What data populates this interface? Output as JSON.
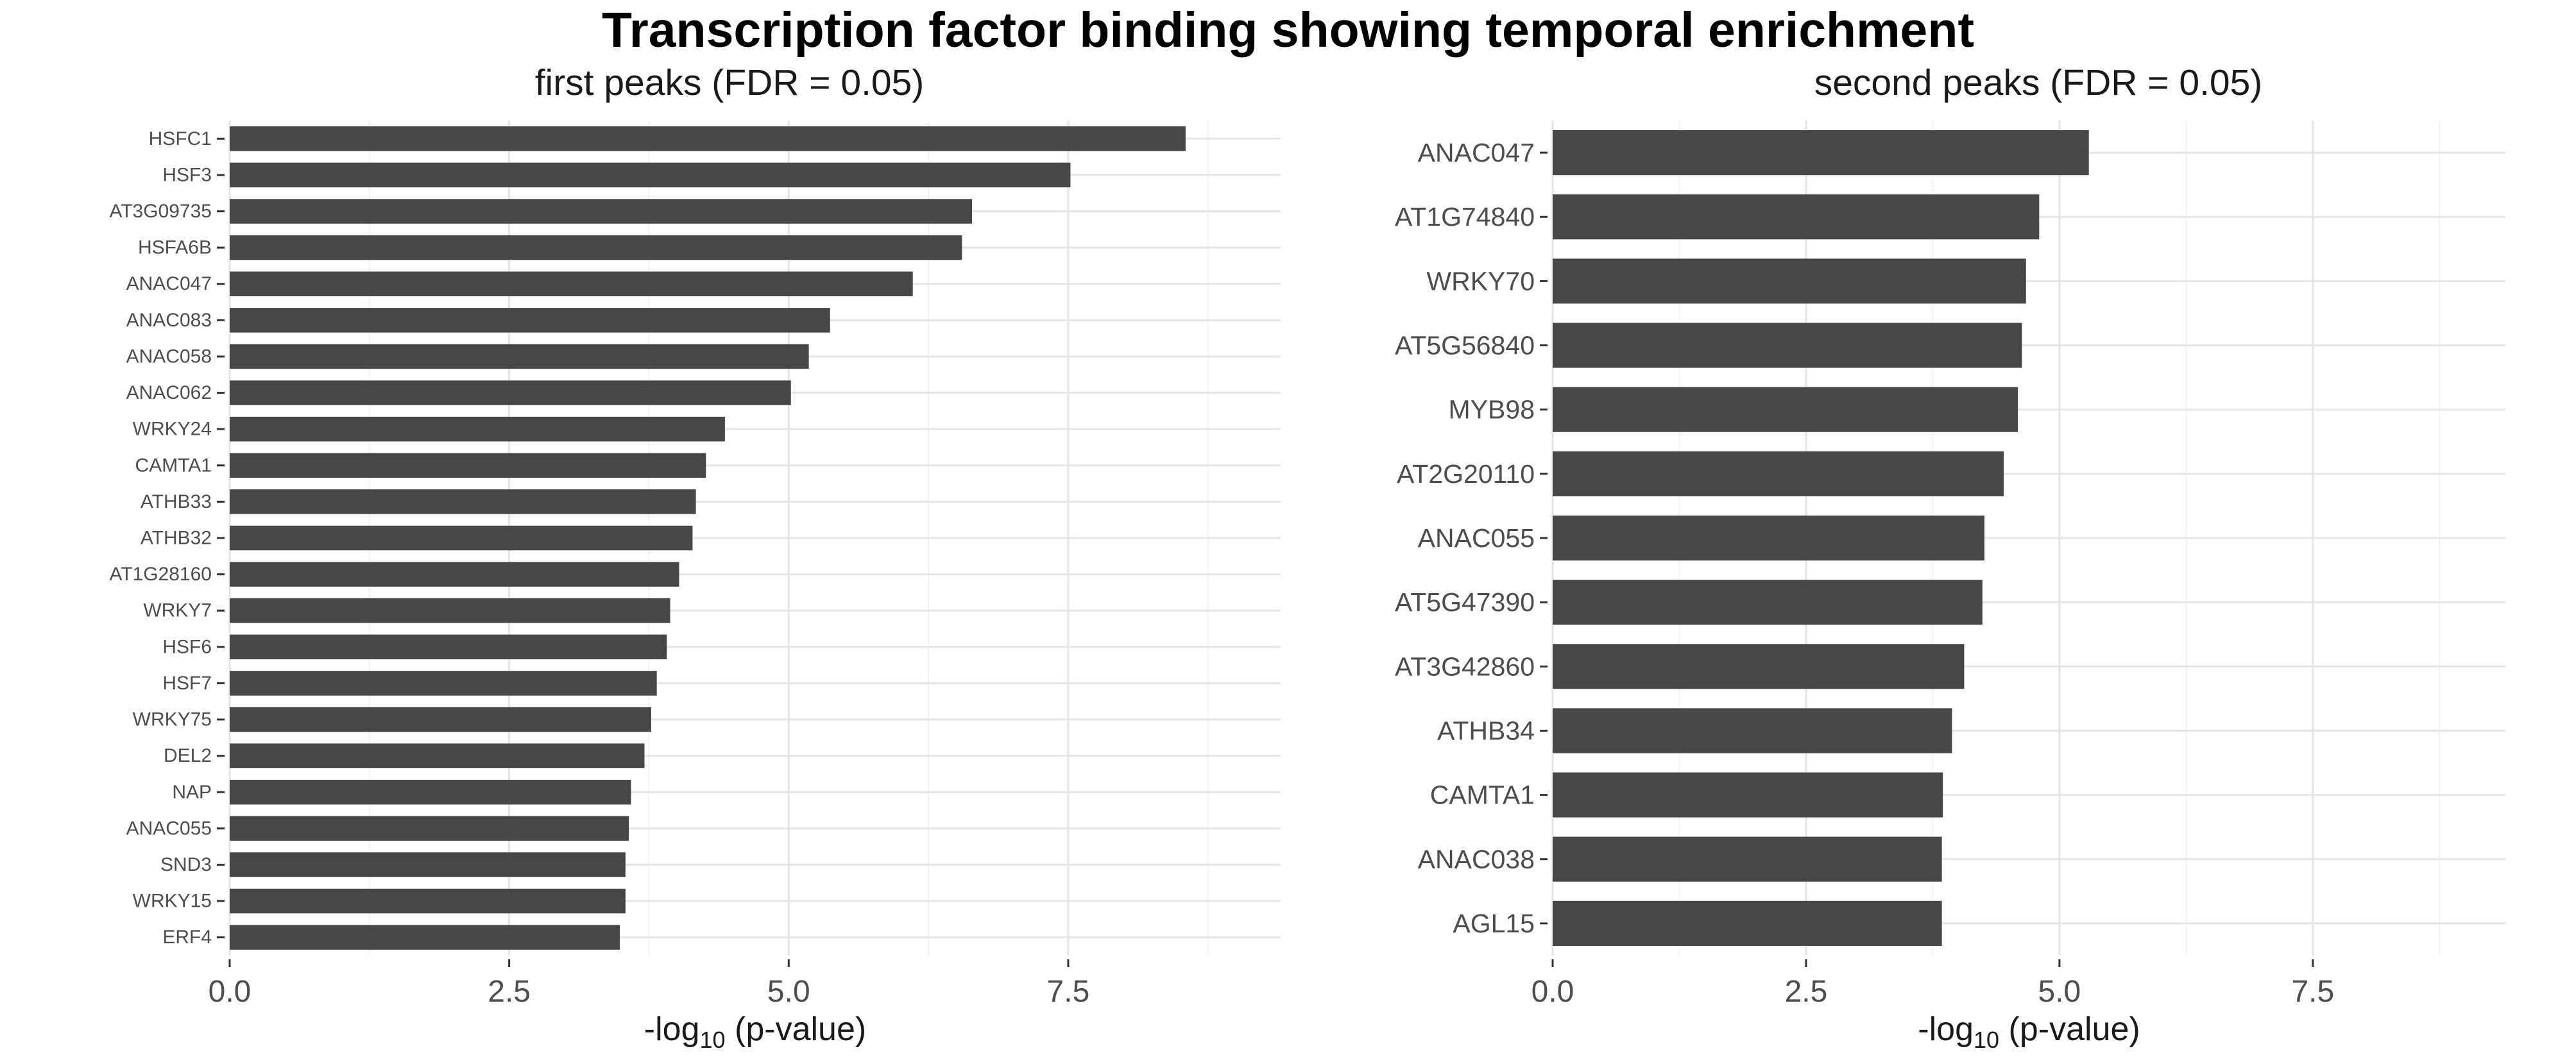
{
  "title": "Transcription factor binding showing temporal enrichment",
  "colors": {
    "bar": "#474747",
    "grid_major": "#e5e5e5",
    "grid_minor": "#f2f2f2",
    "tick_text": "#4d4d4d",
    "title_text": "#000000"
  },
  "chart_data": [
    {
      "type": "bar",
      "orientation": "horizontal",
      "title": "first peaks (FDR = 0.05)",
      "xlabel": "-log10 (p-value)",
      "xlabel_main": "-log",
      "xlabel_sub": "10",
      "xlabel_rest": " (p-value)",
      "xlim": [
        0,
        9.4
      ],
      "xticks": [
        0,
        2.5,
        5,
        7.5
      ],
      "xtick_labels": [
        "0.0",
        "2.5",
        "5.0",
        "7.5"
      ],
      "grid": true,
      "categories": [
        "HSFC1",
        "HSF3",
        "AT3G09735",
        "HSFA6B",
        "ANAC047",
        "ANAC083",
        "ANAC058",
        "ANAC062",
        "WRKY24",
        "CAMTA1",
        "ATHB33",
        "ATHB32",
        "AT1G28160",
        "WRKY7",
        "HSF6",
        "HSF7",
        "WRKY75",
        "DEL2",
        "NAP",
        "ANAC055",
        "SND3",
        "WRKY15",
        "ERF4"
      ],
      "values": [
        8.55,
        7.52,
        6.64,
        6.55,
        6.11,
        5.37,
        5.18,
        5.02,
        4.43,
        4.26,
        4.17,
        4.14,
        4.02,
        3.94,
        3.91,
        3.82,
        3.77,
        3.71,
        3.59,
        3.57,
        3.54,
        3.54,
        3.49
      ]
    },
    {
      "type": "bar",
      "orientation": "horizontal",
      "title": "second peaks (FDR = 0.05)",
      "xlabel": "-log10 (p-value)",
      "xlabel_main": "-log",
      "xlabel_sub": "10",
      "xlabel_rest": " (p-value)",
      "xlim": [
        0,
        9.4
      ],
      "xticks": [
        0,
        2.5,
        5,
        7.5
      ],
      "xtick_labels": [
        "0.0",
        "2.5",
        "5.0",
        "7.5"
      ],
      "grid": true,
      "categories": [
        "ANAC047",
        "AT1G74840",
        "WRKY70",
        "AT5G56840",
        "MYB98",
        "AT2G20110",
        "ANAC055",
        "AT5G47390",
        "AT3G42860",
        "ATHB34",
        "CAMTA1",
        "ANAC038",
        "AGL15"
      ],
      "values": [
        5.29,
        4.8,
        4.67,
        4.63,
        4.59,
        4.45,
        4.26,
        4.24,
        4.06,
        3.94,
        3.85,
        3.84,
        3.84
      ]
    }
  ]
}
